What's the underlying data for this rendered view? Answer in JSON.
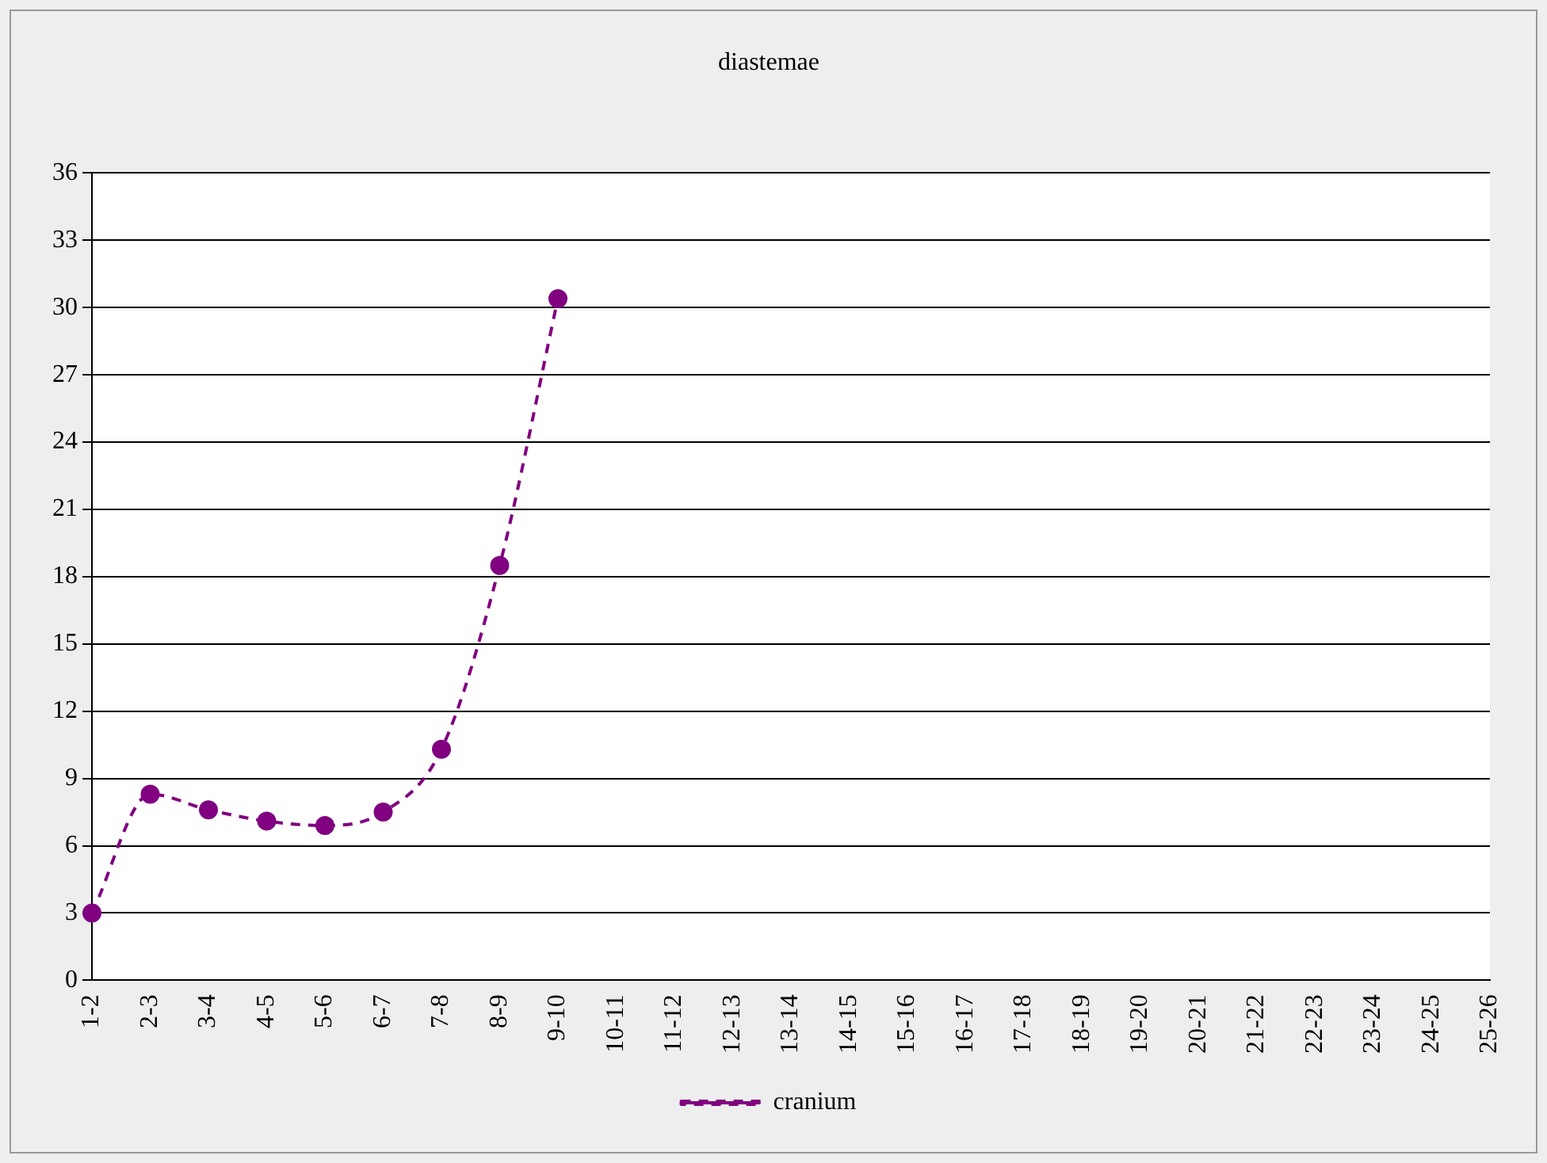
{
  "chart_data": {
    "type": "line",
    "title": "diastemae",
    "categories": [
      "1-2",
      "2-3",
      "3-4",
      "4-5",
      "5-6",
      "6-7",
      "7-8",
      "8-9",
      "9-10",
      "10-11",
      "11-12",
      "12-13",
      "13-14",
      "14-15",
      "15-16",
      "16-17",
      "17-18",
      "18-19",
      "19-20",
      "20-21",
      "21-22",
      "22-23",
      "23-24",
      "24-25",
      "25-26"
    ],
    "series": [
      {
        "name": "cranium",
        "color": "#800080",
        "values": [
          3,
          8.3,
          7.6,
          7.1,
          6.9,
          7.5,
          10.3,
          18.5,
          30.4,
          null,
          null,
          null,
          null,
          null,
          null,
          null,
          null,
          null,
          null,
          null,
          null,
          null,
          null,
          null,
          null
        ]
      }
    ],
    "ylim": [
      0,
      36
    ],
    "yticks": [
      0,
      3,
      6,
      9,
      12,
      15,
      18,
      21,
      24,
      27,
      30,
      33,
      36
    ],
    "grid": "y",
    "legend": "bottom",
    "marker": "circle",
    "line_style": "dashed"
  }
}
